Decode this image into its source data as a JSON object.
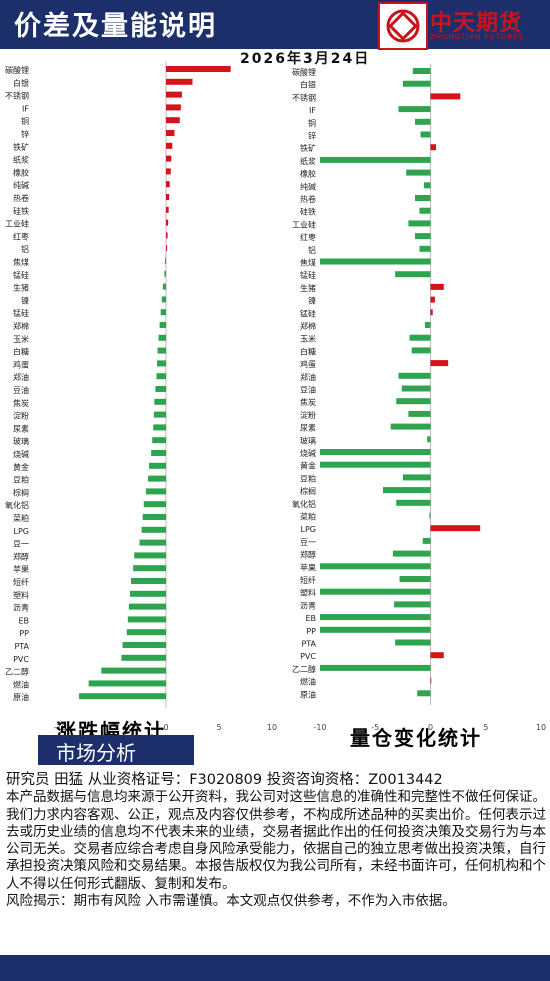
{
  "header": {
    "title": "价差及量能说明",
    "logo_text": "中天期货",
    "logo_sub": "ZHONGTIAN FUTURES"
  },
  "date": "2026年3月24日",
  "colors": {
    "up": "#d4131b",
    "down": "#2ea44f",
    "header_bg": "#1d2f6b",
    "logo": "#c8151d"
  },
  "chart_data": [
    {
      "type": "bar",
      "orientation": "horizontal",
      "title": "涨跌幅统计",
      "xlim": [
        -10,
        10
      ],
      "xticks": [
        -10,
        -5,
        0,
        5,
        10
      ],
      "categories": [
        "碳酸锂",
        "白银",
        "不锈钢",
        "IF",
        "铜",
        "锌",
        "铁矿",
        "纸浆",
        "橡胶",
        "纯碱",
        "热卷",
        "硅铁",
        "工业硅",
        "红枣",
        "铝",
        "焦煤",
        "锰硅",
        "生猪",
        "镍",
        "锰硅",
        "郑棉",
        "玉米",
        "白糖",
        "鸡蛋",
        "郑油",
        "豆油",
        "焦炭",
        "淀粉",
        "尿素",
        "玻璃",
        "烧碱",
        "黄金",
        "豆粕",
        "棕榈",
        "氧化铝",
        "菜粕",
        "LPG",
        "豆一",
        "郑醇",
        "苹果",
        "短纤",
        "塑料",
        "沥青",
        "EB",
        "PP",
        "PTA",
        "PVC",
        "乙二醇",
        "燃油",
        "原油"
      ],
      "values": [
        6.1,
        2.5,
        1.5,
        1.4,
        1.3,
        0.8,
        0.6,
        0.5,
        0.45,
        0.35,
        0.3,
        0.25,
        0.2,
        0.15,
        0.1,
        -0.1,
        -0.15,
        -0.3,
        -0.4,
        -0.5,
        -0.6,
        -0.7,
        -0.8,
        -0.85,
        -0.9,
        -1.0,
        -1.1,
        -1.15,
        -1.2,
        -1.3,
        -1.4,
        -1.6,
        -1.7,
        -1.9,
        -2.1,
        -2.2,
        -2.3,
        -2.5,
        -3.0,
        -3.1,
        -3.3,
        -3.4,
        -3.5,
        -3.6,
        -3.7,
        -4.1,
        -4.2,
        -6.1,
        -7.3,
        -8.2
      ]
    },
    {
      "type": "bar",
      "orientation": "horizontal",
      "title": "量仓变化统计",
      "xlim": [
        -10,
        10
      ],
      "xticks": [
        -10,
        -5,
        0,
        5,
        10
      ],
      "categories": [
        "碳酸锂",
        "白银",
        "不锈钢",
        "IF",
        "铜",
        "锌",
        "铁矿",
        "纸浆",
        "橡胶",
        "纯碱",
        "热卷",
        "硅铁",
        "工业硅",
        "红枣",
        "铝",
        "焦煤",
        "锰硅",
        "生猪",
        "镍",
        "锰硅",
        "郑棉",
        "玉米",
        "白糖",
        "鸡蛋",
        "郑油",
        "豆油",
        "焦炭",
        "淀粉",
        "尿素",
        "玻璃",
        "烧碱",
        "黄金",
        "豆粕",
        "棕榈",
        "氧化铝",
        "菜粕",
        "LPG",
        "豆一",
        "郑醇",
        "苹果",
        "短纤",
        "塑料",
        "沥青",
        "EB",
        "PP",
        "PTA",
        "PVC",
        "乙二醇",
        "燃油",
        "原油"
      ],
      "values": [
        -1.6,
        -2.5,
        2.7,
        -2.9,
        -1.4,
        -0.9,
        0.5,
        -10.0,
        -2.2,
        -0.6,
        -1.4,
        -1.0,
        -2.0,
        -1.4,
        -1.0,
        -10.0,
        -3.2,
        1.2,
        0.4,
        0.2,
        -0.5,
        -1.9,
        -1.7,
        1.6,
        -2.9,
        -2.6,
        -3.1,
        -2.0,
        -3.6,
        -0.3,
        -10.0,
        -10.0,
        -2.5,
        -4.3,
        -3.1,
        -0.1,
        4.5,
        -0.7,
        -3.4,
        -10.0,
        -2.8,
        -10.0,
        -3.3,
        -10.0,
        -10.0,
        -3.2,
        1.2,
        -10.0,
        0,
        -1.2
      ]
    }
  ],
  "market": {
    "label": "市场分析"
  },
  "disclaimer": {
    "researcher": "研究员 田猛   从业资格证号：F3020809  投资咨询资格：Z0013442",
    "p1": "本产品数据与信息均来源于公开资料，我公司对这些信息的准确性和完整性不做任何保证。我们力求内容客观、公正，观点及内容仅供参考，不构成所述品种的买卖出价。任何表示过去或历史业绩的信息均不代表未来的业绩，交易者据此作出的任何投资决策及交易行为与本公司无关。交易者应综合考虑自身风险承受能力，依据自己的独立思考做出投资决策，自行承担投资决策风险和交易结果。本报告版权仅为我公司所有，未经书面许可，任何机构和个人不得以任何形式翻版、复制和发布。",
    "p2": "风险揭示：期市有风险 入市需谨慎。本文观点仅供参考，不作为入市依据。"
  }
}
